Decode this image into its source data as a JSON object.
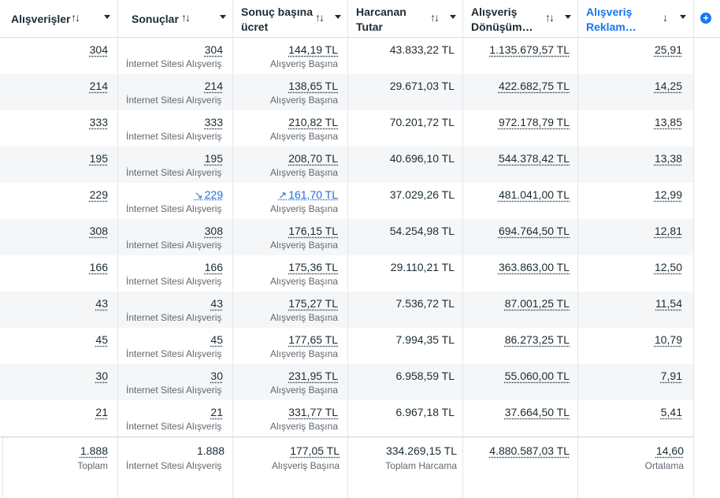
{
  "columns": [
    {
      "title_line1": "Alışverişler",
      "title_line2": "",
      "sort_icon": "sort-both-icon"
    },
    {
      "title_line1": "Sonuçlar",
      "title_line2": "",
      "sort_icon": "sort-both-icon"
    },
    {
      "title_line1": "Sonuç başına",
      "title_line2": "ücret",
      "sort_icon": "sort-both-icon"
    },
    {
      "title_line1": "Harcanan",
      "title_line2": "Tutar",
      "sort_icon": "sort-both-icon"
    },
    {
      "title_line1": "Alışveriş",
      "title_line2": "Dönüşüm…",
      "sort_icon": "sort-both-icon"
    },
    {
      "title_line1": "Alışveriş",
      "title_line2": "Reklam…",
      "sort_icon": "sort-desc-icon",
      "active": true
    }
  ],
  "sort_glyphs": {
    "both": "↑↓",
    "desc": "↓"
  },
  "add_column_label": "+",
  "rows": [
    {
      "purchases": "304",
      "results": "304",
      "results_sub": "İnternet Sitesi Alışveriş",
      "cost": "144,19 TL",
      "cost_sub": "Alışveriş Başına",
      "spent": "43.833,22 TL",
      "conv": "1.135.679,57 TL",
      "roas": "25,91"
    },
    {
      "purchases": "214",
      "results": "214",
      "results_sub": "İnternet Sitesi Alışveriş",
      "cost": "138,65 TL",
      "cost_sub": "Alışveriş Başına",
      "spent": "29.671,03 TL",
      "conv": "422.682,75 TL",
      "roas": "14,25"
    },
    {
      "purchases": "333",
      "results": "333",
      "results_sub": "İnternet Sitesi Alışveriş",
      "cost": "210,82 TL",
      "cost_sub": "Alışveriş Başına",
      "spent": "70.201,72 TL",
      "conv": "972.178,79 TL",
      "roas": "13,85"
    },
    {
      "purchases": "195",
      "results": "195",
      "results_sub": "İnternet Sitesi Alışveriş",
      "cost": "208,70 TL",
      "cost_sub": "Alışveriş Başına",
      "spent": "40.696,10 TL",
      "conv": "544.378,42 TL",
      "roas": "13,38"
    },
    {
      "purchases": "229",
      "results": "229",
      "results_sub": "İnternet Sitesi Alışveriş",
      "cost": "161,70 TL",
      "cost_sub": "Alışveriş Başına",
      "spent": "37.029,26 TL",
      "conv": "481.041,00 TL",
      "roas": "12,99",
      "results_trend": "↘",
      "cost_trend": "↗"
    },
    {
      "purchases": "308",
      "results": "308",
      "results_sub": "İnternet Sitesi Alışveriş",
      "cost": "176,15 TL",
      "cost_sub": "Alışveriş Başına",
      "spent": "54.254,98 TL",
      "conv": "694.764,50 TL",
      "roas": "12,81"
    },
    {
      "purchases": "166",
      "results": "166",
      "results_sub": "İnternet Sitesi Alışveriş",
      "cost": "175,36 TL",
      "cost_sub": "Alışveriş Başına",
      "spent": "29.110,21 TL",
      "conv": "363.863,00 TL",
      "roas": "12,50"
    },
    {
      "purchases": "43",
      "results": "43",
      "results_sub": "İnternet Sitesi Alışveriş",
      "cost": "175,27 TL",
      "cost_sub": "Alışveriş Başına",
      "spent": "7.536,72 TL",
      "conv": "87.001,25 TL",
      "roas": "11,54"
    },
    {
      "purchases": "45",
      "results": "45",
      "results_sub": "İnternet Sitesi Alışveriş",
      "cost": "177,65 TL",
      "cost_sub": "Alışveriş Başına",
      "spent": "7.994,35 TL",
      "conv": "86.273,25 TL",
      "roas": "10,79"
    },
    {
      "purchases": "30",
      "results": "30",
      "results_sub": "İnternet Sitesi Alışveriş",
      "cost": "231,95 TL",
      "cost_sub": "Alışveriş Başına",
      "spent": "6.958,59 TL",
      "conv": "55.060,00 TL",
      "roas": "7,91"
    },
    {
      "purchases": "21",
      "results": "21",
      "results_sub": "İnternet Sitesi Alışveriş",
      "cost": "331,77 TL",
      "cost_sub": "Alışveriş Başına",
      "spent": "6.967,18 TL",
      "conv": "37.664,50 TL",
      "roas": "5,41"
    }
  ],
  "totals": {
    "purchases": "1.888",
    "purchases_sub": "Toplam",
    "results": "1.888",
    "results_sub": "İnternet Sitesi Alışveriş",
    "cost": "177,05 TL",
    "cost_sub": "Alışveriş Başına",
    "spent": "334.269,15 TL",
    "spent_sub": "Toplam Harcama",
    "conv": "4.880.587,03 TL",
    "roas": "14,60",
    "roas_sub": "Ortalama"
  }
}
